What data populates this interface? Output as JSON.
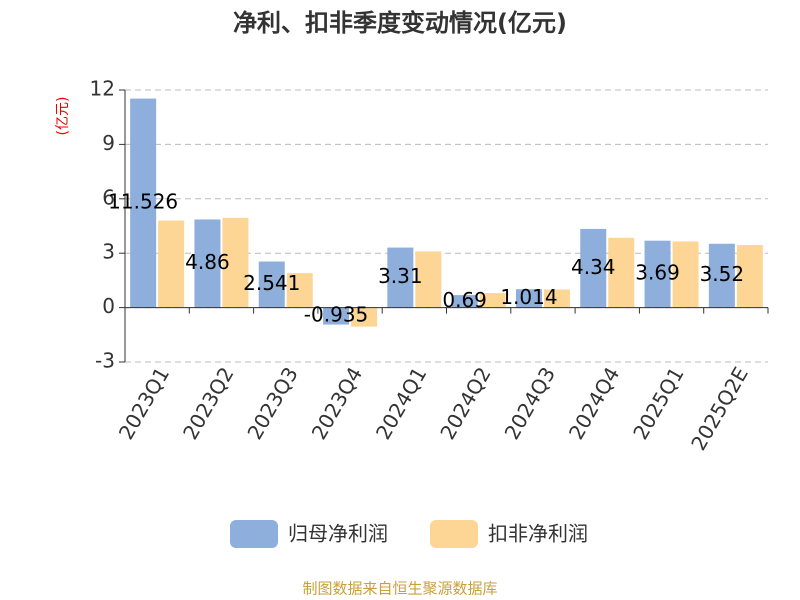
{
  "chart_data": {
    "type": "bar",
    "title": "净利、扣非季度变动情况(亿元)",
    "y_label": "(亿元)",
    "source": "制图数据来自恒生聚源数据库",
    "categories": [
      "2023Q1",
      "2023Q2",
      "2023Q3",
      "2023Q4",
      "2024Q1",
      "2024Q2",
      "2024Q3",
      "2024Q4",
      "2025Q1",
      "2025Q2E"
    ],
    "series": [
      {
        "name": "归母净利润",
        "color": "#8eaedc",
        "values": [
          11.526,
          4.86,
          2.541,
          -0.935,
          3.31,
          0.69,
          1.014,
          4.34,
          3.69,
          3.52
        ]
      },
      {
        "name": "扣非净利润",
        "color": "#fdd695",
        "values": [
          4.8,
          4.95,
          1.9,
          -1.05,
          3.1,
          0.8,
          1.0,
          3.85,
          3.65,
          3.45
        ]
      }
    ],
    "ylim": [
      -3,
      12
    ],
    "yticks": [
      -3,
      0,
      3,
      6,
      9,
      12
    ],
    "grid": true,
    "legend": "bottom"
  }
}
